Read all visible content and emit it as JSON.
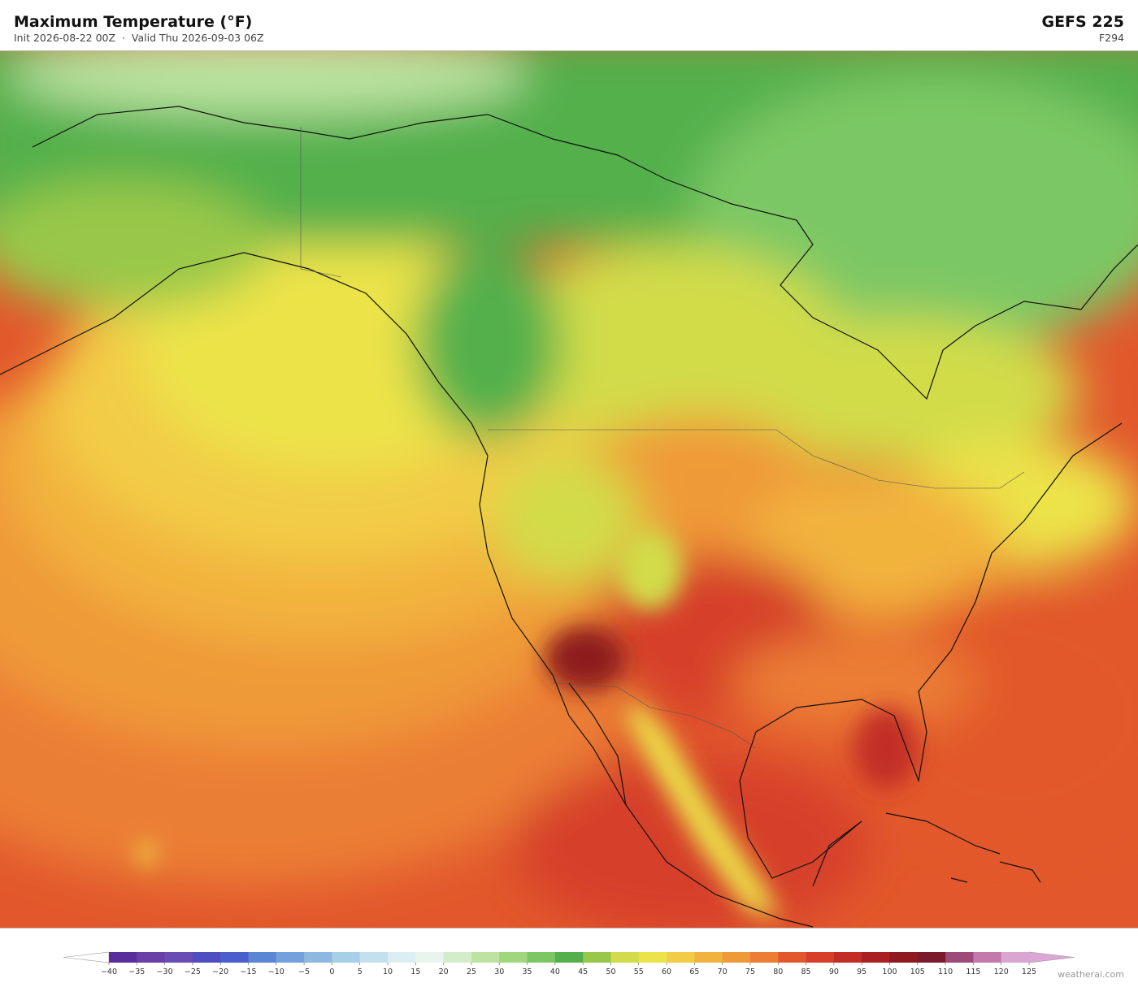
{
  "header": {
    "title": "Maximum Temperature (°F)",
    "subtitle": "Init 2026-08-22 00Z  ·  Valid Thu 2026-09-03 06Z",
    "model": "GEFS 225",
    "forecast_hour": "F294"
  },
  "colorbar": {
    "ticks": [
      {
        "value": -40,
        "label": "−40"
      },
      {
        "value": -35,
        "label": "−35"
      },
      {
        "value": -30,
        "label": "−30"
      },
      {
        "value": -25,
        "label": "−25"
      },
      {
        "value": -20,
        "label": "−20"
      },
      {
        "value": -15,
        "label": "−15"
      },
      {
        "value": -10,
        "label": "−10"
      },
      {
        "value": -5,
        "label": "−5"
      },
      0,
      5,
      10,
      15,
      20,
      25,
      30,
      35,
      40,
      45,
      50,
      55,
      60,
      65,
      70,
      75,
      80,
      85,
      90,
      95,
      100,
      105,
      110,
      115,
      120,
      125
    ],
    "colors": [
      "#5a2d9c",
      "#6a3fa8",
      "#6a4cb5",
      "#4e4ec0",
      "#4a5fcc",
      "#5b86d4",
      "#74a0dc",
      "#8fb8e0",
      "#a8cfe8",
      "#c3e0ee",
      "#daeef3",
      "#e8f5ec",
      "#d3ecca",
      "#bce3a1",
      "#9fd67e",
      "#7cc765",
      "#53b04c",
      "#98c84a",
      "#d2dc4a",
      "#ece34a",
      "#f2cc46",
      "#f2b33e",
      "#ef9a38",
      "#eb7e34",
      "#e2582c",
      "#d6402a",
      "#c22e26",
      "#a91f22",
      "#8e1a1e",
      "#7a1a2a",
      "#9b4a7a",
      "#c27aae",
      "#d9a5d3"
    ],
    "under_color": "#ffffff",
    "over_color": "#dca7d6"
  },
  "footer": {
    "watermark": "weatherai.com"
  }
}
